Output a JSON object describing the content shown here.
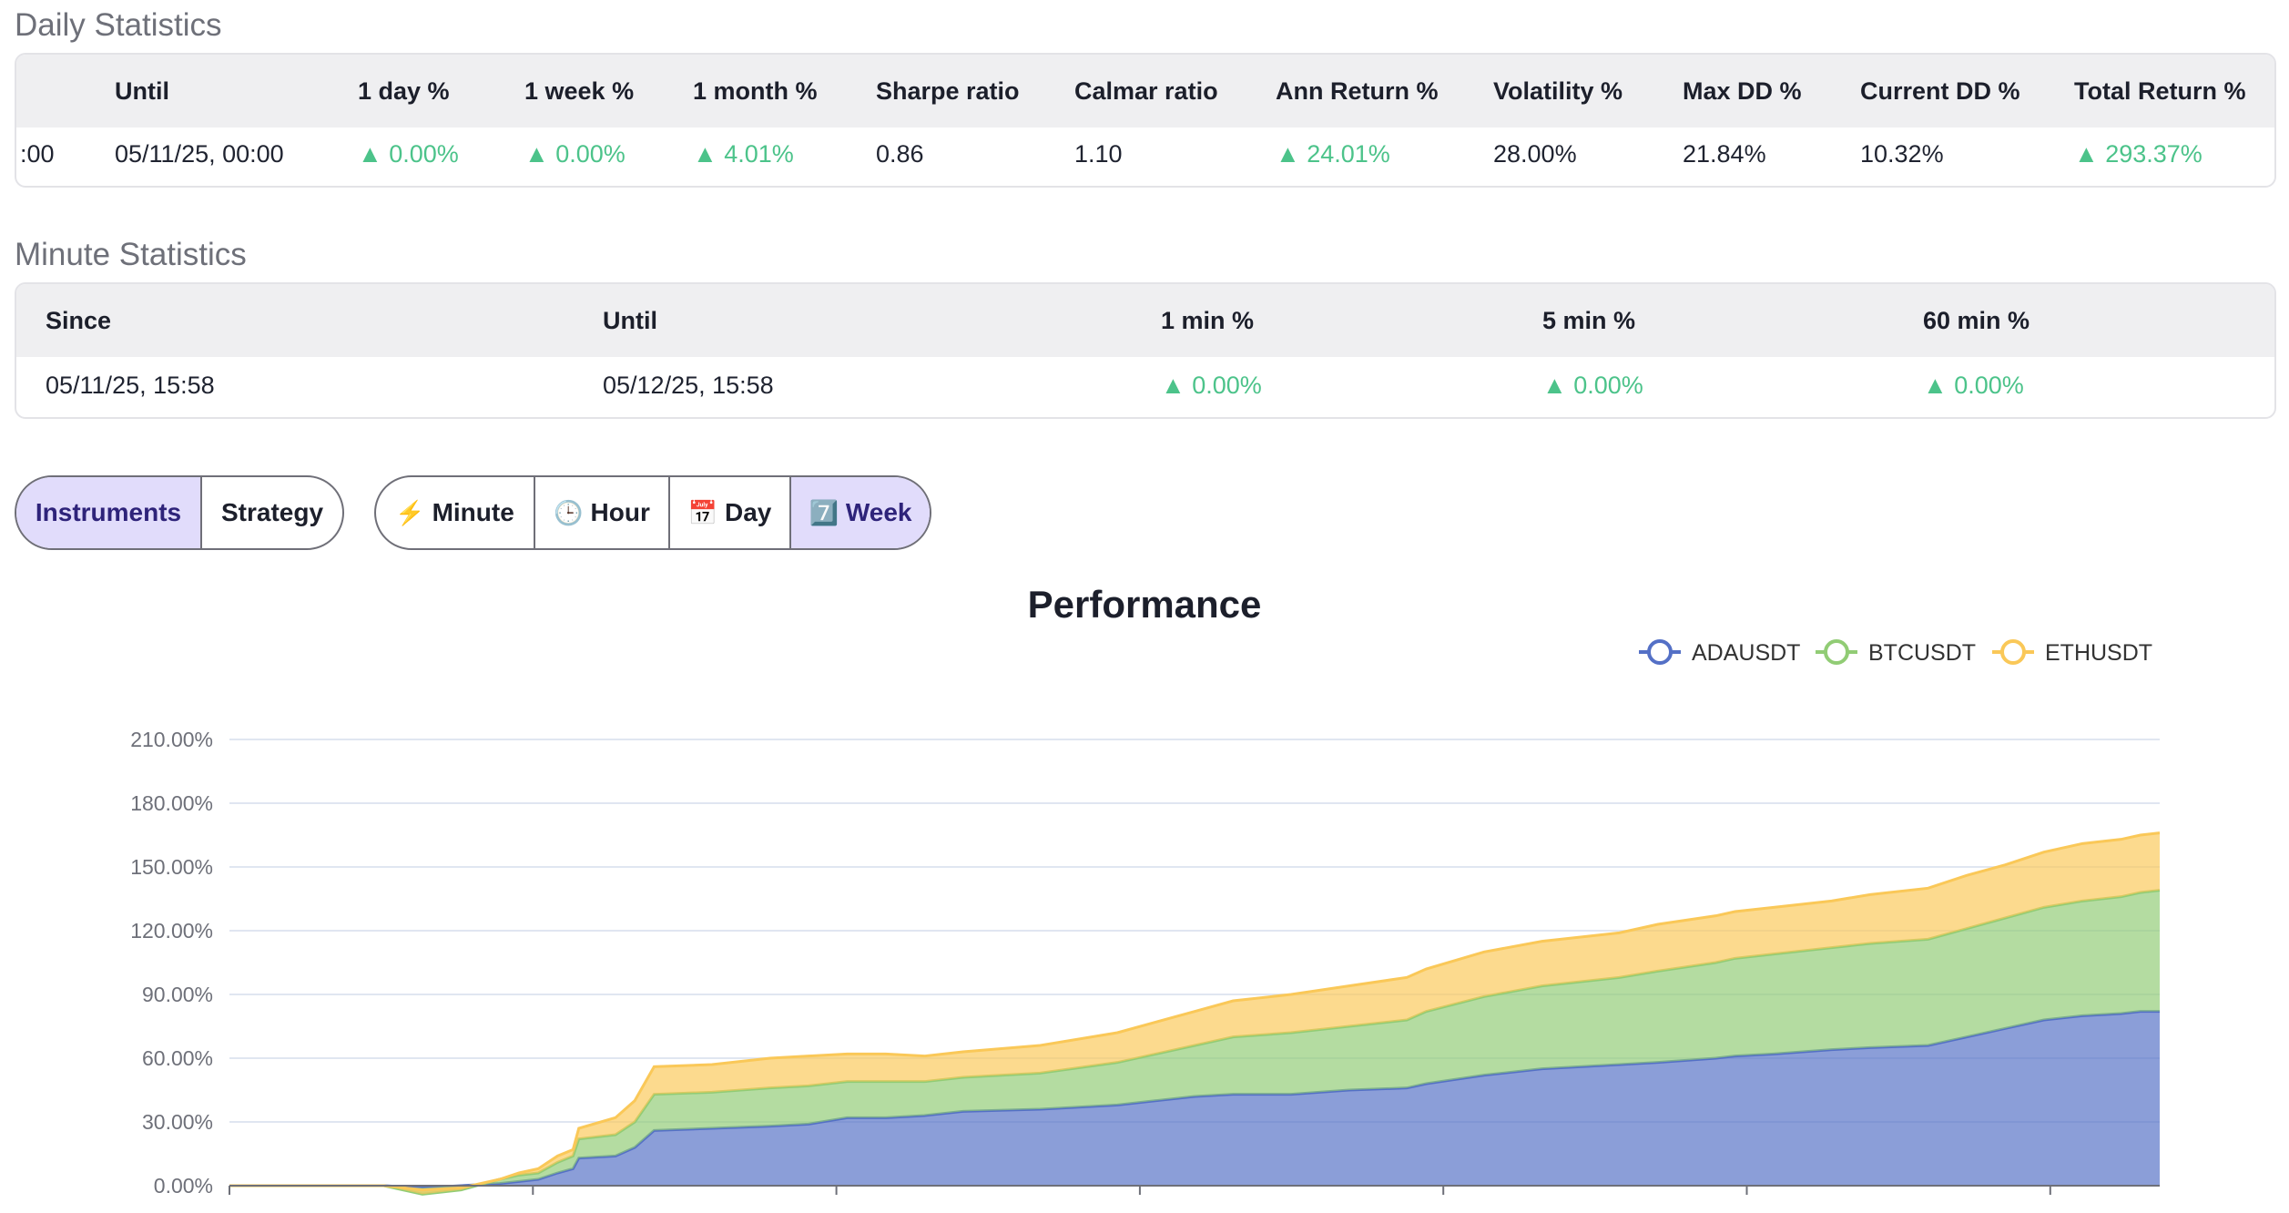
{
  "daily": {
    "title": "Daily Statistics",
    "headers": [
      "Until",
      "1 day %",
      "1 week %",
      "1 month %",
      "Sharpe ratio",
      "Calmar ratio",
      "Ann Return %",
      "Volatility %",
      "Max DD %",
      "Current DD %",
      "Total Return %"
    ],
    "since_fragment": ":00",
    "values": [
      "05/11/25, 00:00",
      "▲ 0.00%",
      "▲ 0.00%",
      "▲ 4.01%",
      "0.86",
      "1.10",
      "▲ 24.01%",
      "28.00%",
      "21.84%",
      "10.32%",
      "▲ 293.37%"
    ]
  },
  "minute": {
    "title": "Minute Statistics",
    "headers": [
      "Since",
      "Until",
      "1 min %",
      "5 min %",
      "60 min %"
    ],
    "values": [
      "05/11/25, 15:58",
      "05/12/25, 15:58",
      "▲ 0.00%",
      "▲ 0.00%",
      "▲ 0.00%"
    ]
  },
  "view_toggle": {
    "instruments": "Instruments",
    "strategy": "Strategy",
    "active": "Instruments"
  },
  "timeframe": {
    "minute": {
      "icon": "⚡",
      "label": "Minute"
    },
    "hour": {
      "icon": "🕒",
      "label": "Hour"
    },
    "day": {
      "icon": "📅",
      "label": "Day"
    },
    "week": {
      "icon": "7️⃣",
      "label": "Week"
    },
    "active": "Week"
  },
  "colors": {
    "positive": "#4cc38a",
    "active_bg": "#e1dcfb",
    "ada": "#5470c6",
    "btc": "#91cc75",
    "eth": "#fac858"
  },
  "chart_data": {
    "type": "area",
    "stacked": true,
    "title": "Performance",
    "legend": [
      "ADAUSDT",
      "BTCUSDT",
      "ETHUSDT"
    ],
    "legend_position": "top-right",
    "y_ticks": [
      "0.00%",
      "30.00%",
      "60.00%",
      "90.00%",
      "120.00%",
      "150.00%",
      "180.00%",
      "210.00%"
    ],
    "ylim": [
      0,
      210
    ],
    "xlim": [
      0,
      100
    ],
    "grid": true,
    "series": [
      {
        "name": "ADAUSDT",
        "color": "#5470c6",
        "points": [
          [
            0,
            0
          ],
          [
            8,
            0
          ],
          [
            10,
            -1
          ],
          [
            12,
            0
          ],
          [
            14,
            1
          ],
          [
            15,
            2
          ],
          [
            16,
            3
          ],
          [
            17,
            6
          ],
          [
            17.8,
            8
          ],
          [
            18.1,
            13
          ],
          [
            20,
            14
          ],
          [
            21,
            18
          ],
          [
            22,
            26
          ],
          [
            25,
            27
          ],
          [
            28,
            28
          ],
          [
            30,
            29
          ],
          [
            32,
            32
          ],
          [
            34,
            32
          ],
          [
            36,
            33
          ],
          [
            38,
            35
          ],
          [
            42,
            36
          ],
          [
            46,
            38
          ],
          [
            48,
            40
          ],
          [
            50,
            42
          ],
          [
            52,
            43
          ],
          [
            55,
            43
          ],
          [
            58,
            45
          ],
          [
            61,
            46
          ],
          [
            62,
            48
          ],
          [
            65,
            52
          ],
          [
            68,
            55
          ],
          [
            72,
            57
          ],
          [
            74,
            58
          ],
          [
            77,
            60
          ],
          [
            78,
            61
          ],
          [
            80,
            62
          ],
          [
            83,
            64
          ],
          [
            85,
            65
          ],
          [
            88,
            66
          ],
          [
            90,
            70
          ],
          [
            92,
            74
          ],
          [
            94,
            78
          ],
          [
            96,
            80
          ],
          [
            98,
            81
          ],
          [
            99,
            82
          ],
          [
            100,
            82
          ]
        ]
      },
      {
        "name": "BTCUSDT",
        "color": "#91cc75",
        "points": [
          [
            0,
            0
          ],
          [
            8,
            0
          ],
          [
            10,
            -3
          ],
          [
            12,
            -2
          ],
          [
            14,
            2
          ],
          [
            15,
            3
          ],
          [
            16,
            3
          ],
          [
            17,
            5
          ],
          [
            17.8,
            6
          ],
          [
            18.1,
            9
          ],
          [
            20,
            10
          ],
          [
            21,
            12
          ],
          [
            22,
            17
          ],
          [
            25,
            17
          ],
          [
            28,
            18
          ],
          [
            30,
            18
          ],
          [
            32,
            17
          ],
          [
            34,
            17
          ],
          [
            36,
            16
          ],
          [
            38,
            16
          ],
          [
            42,
            17
          ],
          [
            46,
            20
          ],
          [
            48,
            22
          ],
          [
            50,
            24
          ],
          [
            52,
            27
          ],
          [
            55,
            29
          ],
          [
            58,
            30
          ],
          [
            61,
            32
          ],
          [
            62,
            34
          ],
          [
            65,
            37
          ],
          [
            68,
            39
          ],
          [
            72,
            41
          ],
          [
            74,
            43
          ],
          [
            77,
            45
          ],
          [
            78,
            46
          ],
          [
            80,
            47
          ],
          [
            83,
            48
          ],
          [
            85,
            49
          ],
          [
            88,
            50
          ],
          [
            90,
            51
          ],
          [
            92,
            52
          ],
          [
            94,
            53
          ],
          [
            96,
            54
          ],
          [
            98,
            55
          ],
          [
            99,
            56
          ],
          [
            100,
            57
          ]
        ]
      },
      {
        "name": "ETHUSDT",
        "color": "#fac858",
        "points": [
          [
            0,
            0
          ],
          [
            8,
            0
          ],
          [
            10,
            2
          ],
          [
            12,
            1
          ],
          [
            14,
            0
          ],
          [
            15,
            1
          ],
          [
            16,
            2
          ],
          [
            17,
            3
          ],
          [
            17.8,
            3
          ],
          [
            18.1,
            5
          ],
          [
            20,
            8
          ],
          [
            21,
            10
          ],
          [
            22,
            13
          ],
          [
            25,
            13
          ],
          [
            28,
            14
          ],
          [
            30,
            14
          ],
          [
            32,
            13
          ],
          [
            34,
            13
          ],
          [
            36,
            12
          ],
          [
            38,
            12
          ],
          [
            42,
            13
          ],
          [
            46,
            14
          ],
          [
            48,
            15
          ],
          [
            50,
            16
          ],
          [
            52,
            17
          ],
          [
            55,
            18
          ],
          [
            58,
            19
          ],
          [
            61,
            20
          ],
          [
            62,
            20
          ],
          [
            65,
            21
          ],
          [
            68,
            21
          ],
          [
            72,
            21
          ],
          [
            74,
            22
          ],
          [
            77,
            22
          ],
          [
            78,
            22
          ],
          [
            80,
            22
          ],
          [
            83,
            22
          ],
          [
            85,
            23
          ],
          [
            88,
            24
          ],
          [
            90,
            25
          ],
          [
            92,
            25
          ],
          [
            94,
            26
          ],
          [
            96,
            27
          ],
          [
            98,
            27
          ],
          [
            99,
            27
          ],
          [
            100,
            27
          ]
        ]
      }
    ]
  }
}
